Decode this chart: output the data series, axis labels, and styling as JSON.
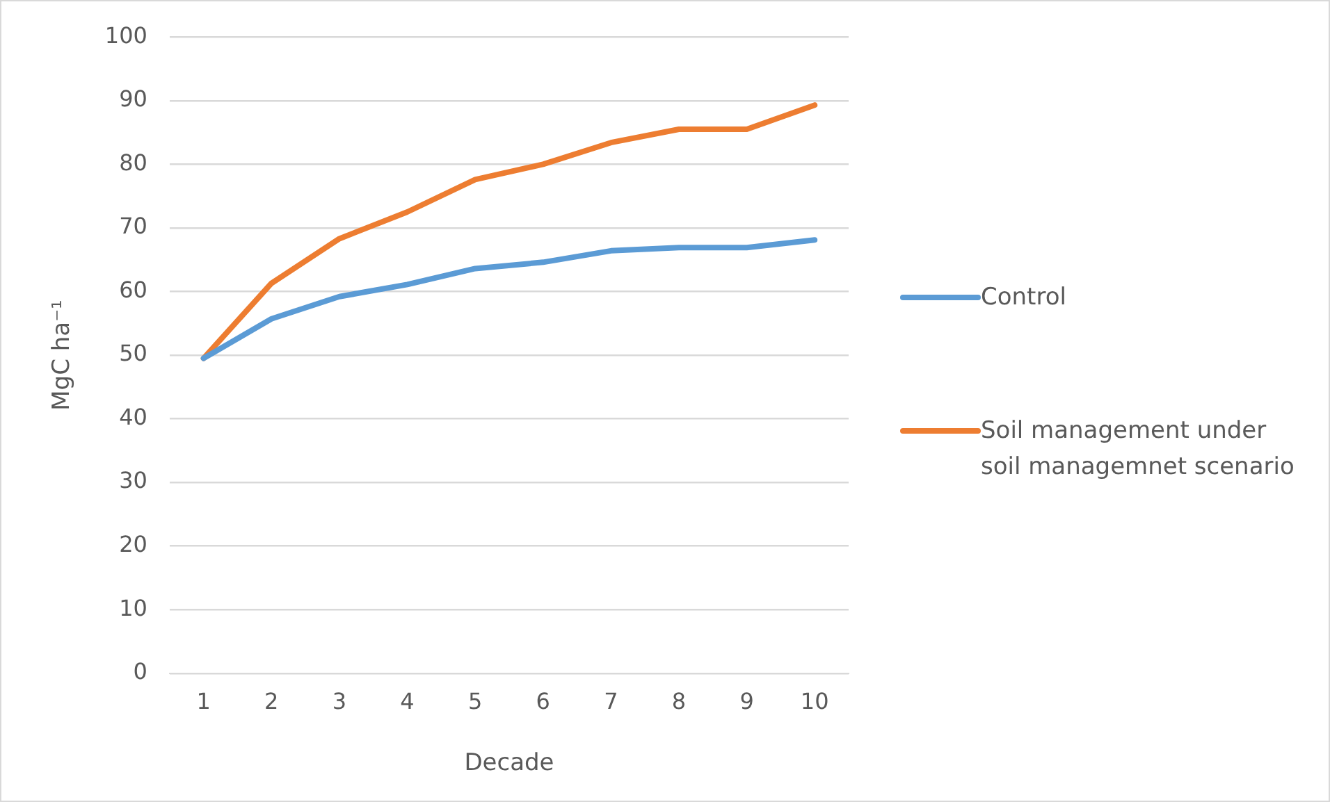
{
  "chart_data": {
    "type": "line",
    "xlabel": "Decade",
    "ylabel": "MgC ha⁻¹",
    "categories": [
      "1",
      "2",
      "3",
      "4",
      "5",
      "6",
      "7",
      "8",
      "9",
      "10"
    ],
    "series": [
      {
        "name": "Control",
        "color": "#5b9bd5",
        "values": [
          49.5,
          55.7,
          59.2,
          61.1,
          63.6,
          64.6,
          66.4,
          66.9,
          66.9,
          68.1
        ]
      },
      {
        "name": "Soil management under soil managemnet scenario",
        "color": "#ed7d31",
        "values": [
          49.5,
          61.3,
          68.3,
          72.5,
          77.6,
          80.0,
          83.4,
          85.5,
          85.5,
          89.3
        ]
      }
    ],
    "ylim": [
      0,
      100
    ],
    "yticks": [
      0,
      10,
      20,
      30,
      40,
      50,
      60,
      70,
      80,
      90,
      100
    ],
    "grid": "y",
    "legend": "right",
    "marker": "none",
    "line_style": "solid"
  }
}
